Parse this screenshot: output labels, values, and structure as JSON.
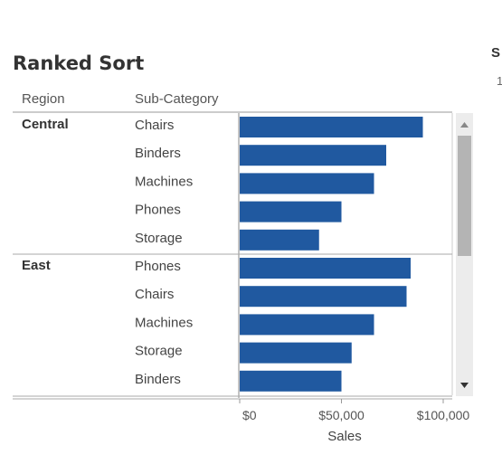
{
  "page": {
    "title": "Ranked Sort",
    "side_text": [
      "S",
      "1"
    ]
  },
  "colors": {
    "bar": "#2059a0",
    "scroll_track": "#ececec",
    "scroll_thumb": "#b4b4b4"
  },
  "chart_data": {
    "type": "bar",
    "orientation": "horizontal",
    "title": "Ranked Sort",
    "column_headers": [
      "Region",
      "Sub-Category"
    ],
    "xlabel": "Sales",
    "xlim": [
      0,
      100000
    ],
    "xticks": [
      {
        "value": 0,
        "label": "$0"
      },
      {
        "value": 50000,
        "label": "$50,000"
      },
      {
        "value": 100000,
        "label": "$100,000"
      }
    ],
    "groups": [
      {
        "region": "Central",
        "rows": [
          {
            "category": "Chairs",
            "value": 90000
          },
          {
            "category": "Binders",
            "value": 72000
          },
          {
            "category": "Machines",
            "value": 66000
          },
          {
            "category": "Phones",
            "value": 50000
          },
          {
            "category": "Storage",
            "value": 39000
          }
        ]
      },
      {
        "region": "East",
        "rows": [
          {
            "category": "Phones",
            "value": 84000
          },
          {
            "category": "Chairs",
            "value": 82000
          },
          {
            "category": "Machines",
            "value": 66000
          },
          {
            "category": "Storage",
            "value": 55000
          },
          {
            "category": "Binders",
            "value": 50000
          }
        ]
      }
    ]
  }
}
